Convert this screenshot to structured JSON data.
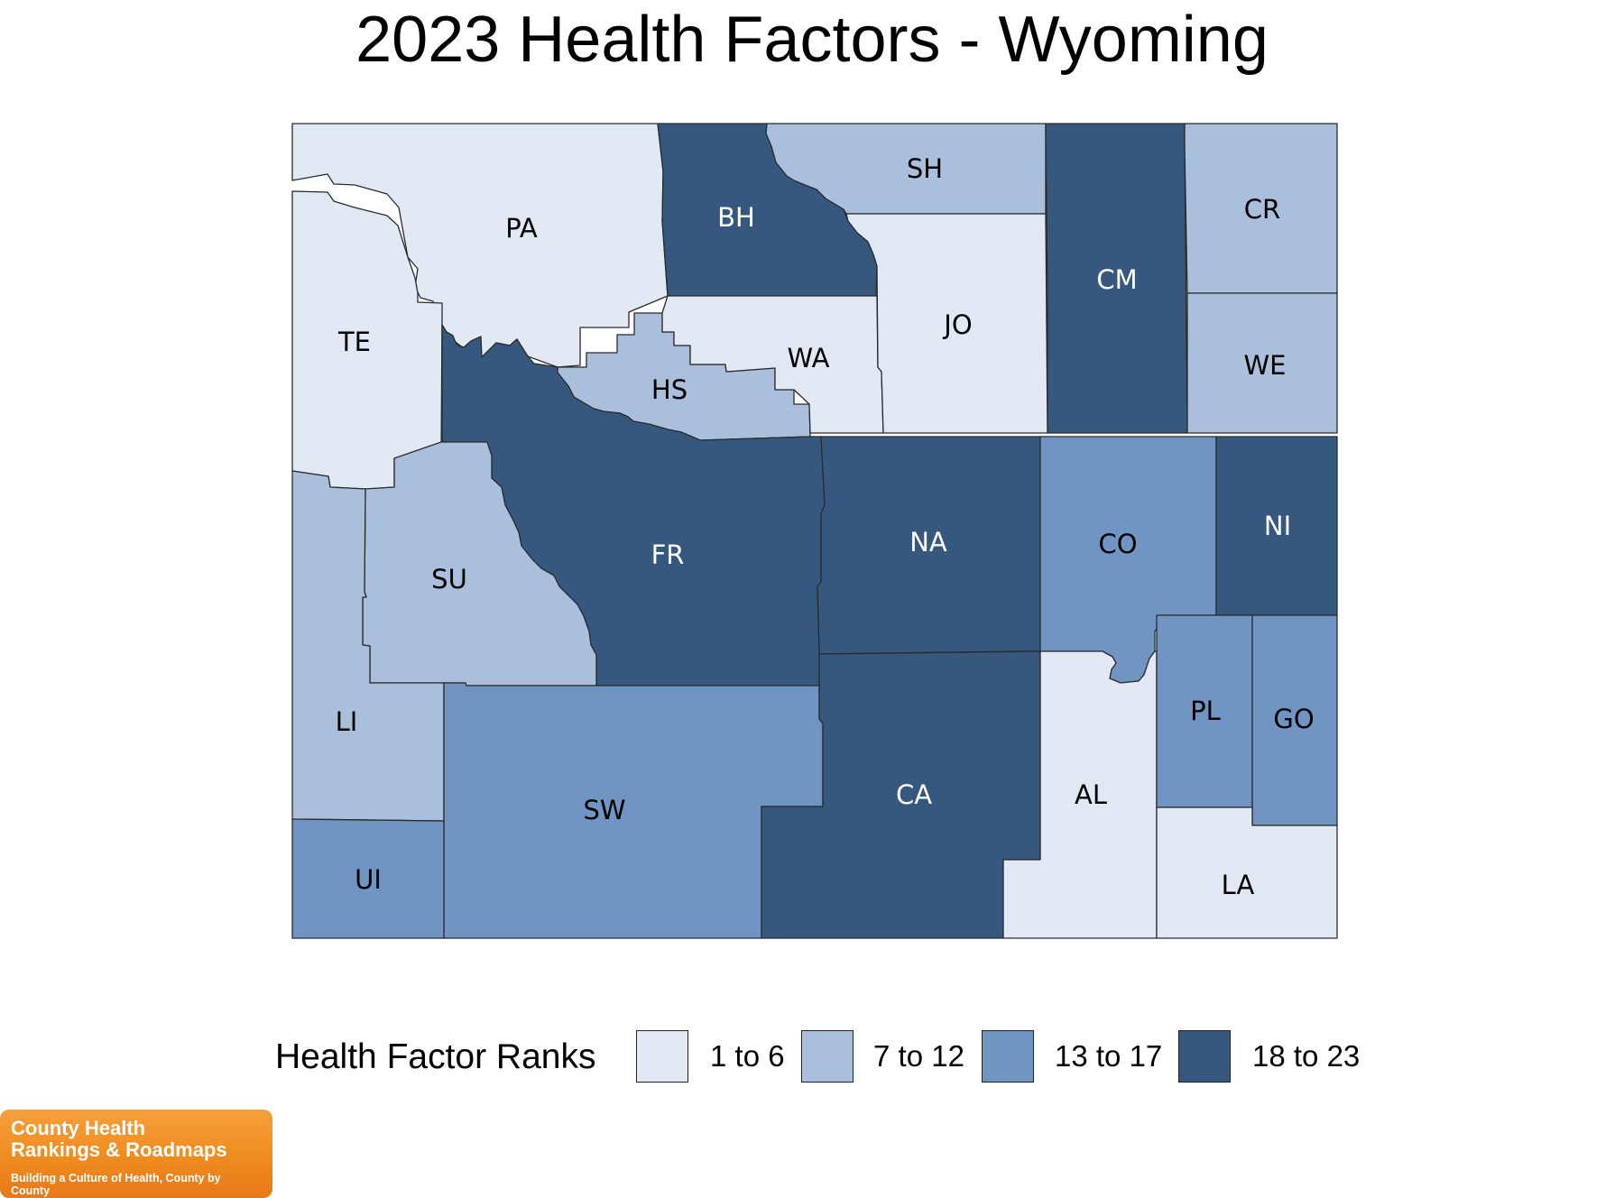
{
  "title": "2023 Health Factors - Wyoming",
  "legend": {
    "title": "Health Factor Ranks",
    "classes": [
      {
        "label": "1 to 6",
        "color": "#e1e9f4"
      },
      {
        "label": "7 to 12",
        "color": "#a9bfdc"
      },
      {
        "label": "13 to 17",
        "color": "#7095c3"
      },
      {
        "label": "18 to 23",
        "color": "#36587f"
      }
    ]
  },
  "counties": [
    {
      "abbr": "PA",
      "class": 0
    },
    {
      "abbr": "BH",
      "class": 3
    },
    {
      "abbr": "SH",
      "class": 1
    },
    {
      "abbr": "CM",
      "class": 3
    },
    {
      "abbr": "CR",
      "class": 1
    },
    {
      "abbr": "TE",
      "class": 0
    },
    {
      "abbr": "HS",
      "class": 1
    },
    {
      "abbr": "WA",
      "class": 0
    },
    {
      "abbr": "JO",
      "class": 0
    },
    {
      "abbr": "WE",
      "class": 1
    },
    {
      "abbr": "FR",
      "class": 3
    },
    {
      "abbr": "NA",
      "class": 3
    },
    {
      "abbr": "CO",
      "class": 2
    },
    {
      "abbr": "NI",
      "class": 3
    },
    {
      "abbr": "SU",
      "class": 1
    },
    {
      "abbr": "LI",
      "class": 1
    },
    {
      "abbr": "SW",
      "class": 2
    },
    {
      "abbr": "CA",
      "class": 3
    },
    {
      "abbr": "AL",
      "class": 0
    },
    {
      "abbr": "PL",
      "class": 2
    },
    {
      "abbr": "GO",
      "class": 2
    },
    {
      "abbr": "UI",
      "class": 2
    },
    {
      "abbr": "LA",
      "class": 0
    }
  ],
  "logo": {
    "line1": "County Health",
    "line2": "Rankings & Roadmaps",
    "tagline": "Building a Culture of Health, County by County"
  }
}
